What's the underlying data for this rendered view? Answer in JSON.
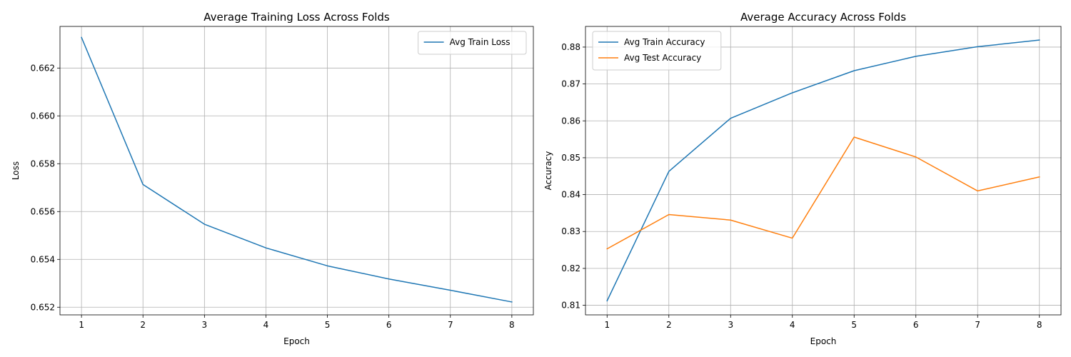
{
  "chart_data": [
    {
      "type": "line",
      "title": "Average Training Loss Across Folds",
      "xlabel": "Epoch",
      "ylabel": "Loss",
      "x": [
        1,
        2,
        3,
        4,
        5,
        6,
        7,
        8
      ],
      "xticks": [
        "1",
        "2",
        "3",
        "4",
        "5",
        "6",
        "7",
        "8"
      ],
      "xlim": [
        0.65,
        8.35
      ],
      "ylim": [
        0.65168,
        0.66374
      ],
      "yticks": [
        0.652,
        0.654,
        0.656,
        0.658,
        0.66,
        0.662
      ],
      "ytick_labels": [
        "0.652",
        "0.654",
        "0.656",
        "0.658",
        "0.660",
        "0.662"
      ],
      "grid": true,
      "legend_position": "top-right",
      "series": [
        {
          "name": "Avg Train Loss",
          "color": "#1f77b4",
          "values": [
            0.66328,
            0.65713,
            0.65547,
            0.65448,
            0.65373,
            0.65318,
            0.65271,
            0.65222
          ]
        }
      ]
    },
    {
      "type": "line",
      "title": "Average Accuracy Across Folds",
      "xlabel": "Epoch",
      "ylabel": "Accuracy",
      "x": [
        1,
        2,
        3,
        4,
        5,
        6,
        7,
        8
      ],
      "xticks": [
        "1",
        "2",
        "3",
        "4",
        "5",
        "6",
        "7",
        "8"
      ],
      "xlim": [
        0.65,
        8.35
      ],
      "ylim": [
        0.8074,
        0.8856
      ],
      "yticks": [
        0.81,
        0.82,
        0.83,
        0.84,
        0.85,
        0.86,
        0.87,
        0.88
      ],
      "ytick_labels": [
        "0.81",
        "0.82",
        "0.83",
        "0.84",
        "0.85",
        "0.86",
        "0.87",
        "0.88"
      ],
      "grid": true,
      "legend_position": "top-left",
      "series": [
        {
          "name": "Avg Train Accuracy",
          "color": "#1f77b4",
          "values": [
            0.8112,
            0.8463,
            0.8607,
            0.8676,
            0.8736,
            0.8775,
            0.8801,
            0.8819
          ]
        },
        {
          "name": "Avg Test Accuracy",
          "color": "#ff7f0e",
          "values": [
            0.8253,
            0.8346,
            0.8331,
            0.8282,
            0.8556,
            0.8502,
            0.841,
            0.8448
          ]
        }
      ]
    }
  ]
}
